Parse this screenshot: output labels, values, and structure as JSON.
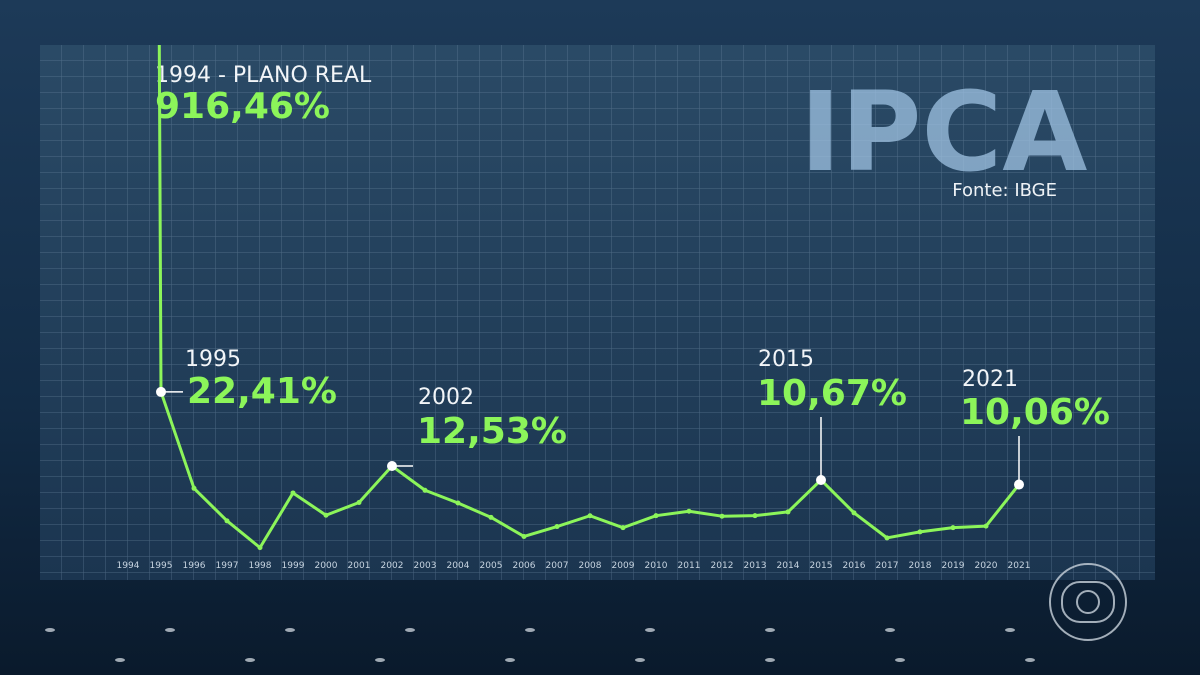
{
  "chart_data": {
    "type": "line",
    "title": "IPCA",
    "source": "Fonte: IBGE",
    "annotation": "1994 - PLANO REAL",
    "categories": [
      "1994",
      "1995",
      "1996",
      "1997",
      "1998",
      "1999",
      "2000",
      "2001",
      "2002",
      "2003",
      "2004",
      "2005",
      "2006",
      "2007",
      "2008",
      "2009",
      "2010",
      "2011",
      "2012",
      "2013",
      "2014",
      "2015",
      "2016",
      "2017",
      "2018",
      "2019",
      "2020",
      "2021"
    ],
    "values": [
      916.46,
      22.41,
      9.56,
      5.22,
      1.65,
      8.94,
      5.97,
      7.67,
      12.53,
      9.3,
      7.6,
      5.69,
      3.14,
      4.46,
      5.9,
      4.31,
      5.91,
      6.5,
      5.84,
      5.91,
      6.41,
      10.67,
      6.29,
      2.95,
      3.75,
      4.31,
      4.52,
      10.06
    ],
    "value_labels": [
      "916,46%",
      "22,41%",
      null,
      null,
      null,
      null,
      null,
      null,
      "12,53%",
      null,
      null,
      null,
      null,
      null,
      null,
      null,
      null,
      null,
      null,
      null,
      null,
      "10,67%",
      null,
      null,
      null,
      null,
      null,
      "10,06%"
    ],
    "color": "#8cf55a"
  }
}
